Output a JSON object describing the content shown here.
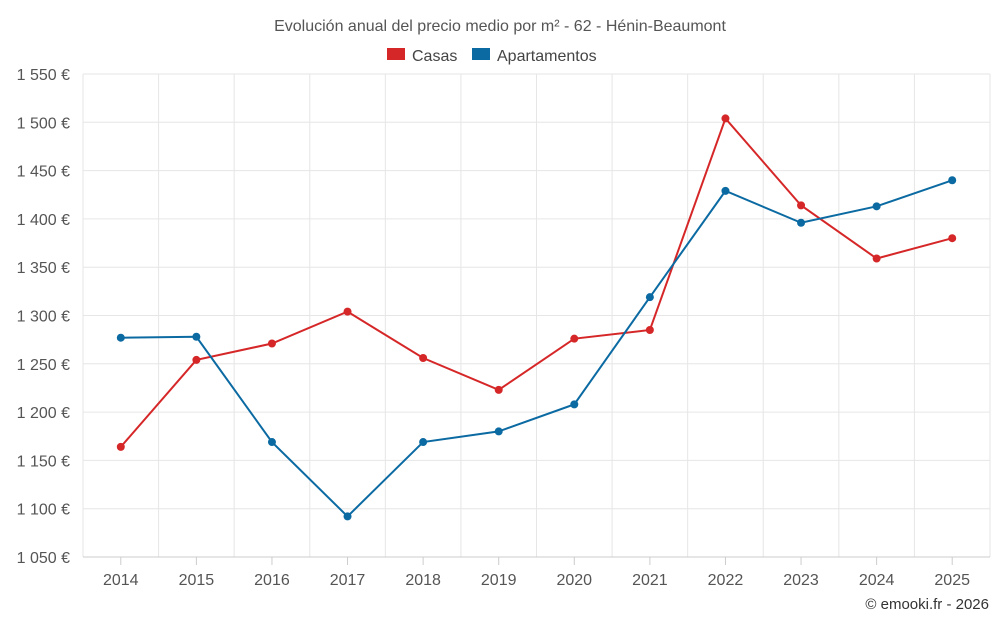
{
  "chart_data": {
    "type": "line",
    "title": "Evolución anual del precio medio por m² - 62 - Hénin-Beaumont",
    "categories": [
      "2014",
      "2015",
      "2016",
      "2017",
      "2018",
      "2019",
      "2020",
      "2021",
      "2022",
      "2023",
      "2024",
      "2025"
    ],
    "series": [
      {
        "name": "Casas",
        "color": "#d62728",
        "values": [
          1164,
          1254,
          1271,
          1304,
          1256,
          1223,
          1276,
          1285,
          1504,
          1414,
          1359,
          1380
        ]
      },
      {
        "name": "Apartamentos",
        "color": "#0b6aa2",
        "values": [
          1277,
          1278,
          1169,
          1092,
          1169,
          1180,
          1208,
          1319,
          1429,
          1396,
          1413,
          1440
        ]
      }
    ],
    "ylim": [
      1050,
      1550
    ],
    "yticks": [
      1550,
      1500,
      1450,
      1400,
      1350,
      1300,
      1250,
      1200,
      1150,
      1100,
      1050
    ],
    "ytick_labels": [
      "1 550 €",
      "1 500 €",
      "1 450 €",
      "1 400 €",
      "1 350 €",
      "1 300 €",
      "1 250 €",
      "1 200 €",
      "1 150 €",
      "1 100 €",
      "1 050 €"
    ],
    "xlabel": "",
    "ylabel": "",
    "grid": true,
    "legend_position": "top-center",
    "credit": "© emooki.fr - 2026"
  }
}
